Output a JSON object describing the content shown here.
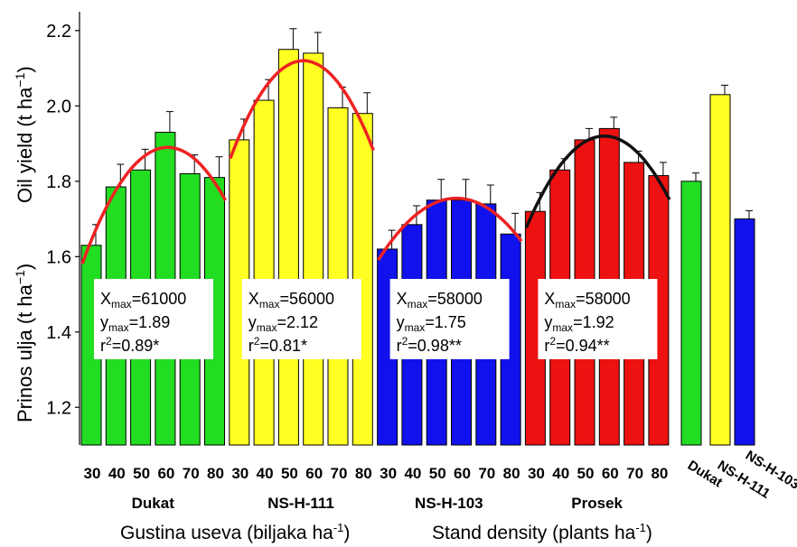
{
  "chart_data": {
    "type": "bar",
    "ylabel_1": "Prinos ulja (t ha",
    "ylabel_1_sup": "−1",
    "ylabel_1_close": ")",
    "ylabel_2": "Oil yield (t ha",
    "ylabel_2_sup": "−1",
    "ylabel_2_close": ")",
    "xlabel_1": "Gustina useva (biljaka ha",
    "xlabel_1_sup": "-1",
    "xlabel_1_close": ")",
    "xlabel_2": "Stand density (plants ha",
    "xlabel_2_sup": "-1",
    "xlabel_2_close": ")",
    "ylim": [
      1.1,
      2.25
    ],
    "yticks": [
      "1.2",
      "1.4",
      "1.6",
      "1.8",
      "2.0",
      "2.2"
    ],
    "groups": [
      {
        "name": "Dukat",
        "color": "#22dd22",
        "categories": [
          "30",
          "40",
          "50",
          "60",
          "70",
          "80"
        ],
        "values": [
          1.63,
          1.785,
          1.83,
          1.93,
          1.82,
          1.81
        ],
        "errors": [
          0.055,
          0.06,
          0.055,
          0.055,
          0.05,
          0.055
        ],
        "fit": {
          "a": 1.89,
          "k": 61000,
          "color": "#ee2222"
        },
        "stats": {
          "x": "61000",
          "y": "1.89",
          "r2": "0.89*"
        }
      },
      {
        "name": "NS-H-111",
        "color": "#ffff22",
        "categories": [
          "30",
          "40",
          "50",
          "60",
          "70",
          "80"
        ],
        "values": [
          1.91,
          2.015,
          2.15,
          2.14,
          1.995,
          1.98
        ],
        "errors": [
          0.055,
          0.055,
          0.055,
          0.055,
          0.055,
          0.055
        ],
        "fit": {
          "a": 2.12,
          "k": 56000,
          "color": "#ee2222"
        },
        "stats": {
          "x": "56000",
          "y": "2.12",
          "r2": "0.81*"
        }
      },
      {
        "name": "NS-H-103",
        "color": "#1111ee",
        "categories": [
          "30",
          "40",
          "50",
          "60",
          "70",
          "80"
        ],
        "values": [
          1.62,
          1.685,
          1.75,
          1.75,
          1.74,
          1.66
        ],
        "errors": [
          0.05,
          0.05,
          0.055,
          0.055,
          0.05,
          0.055
        ],
        "fit": {
          "a": 1.755,
          "k": 58000,
          "color": "#ee2222"
        },
        "stats": {
          "x": "58000",
          "y": "1.75",
          "r2": "0.98**"
        }
      },
      {
        "name": "Prosek",
        "color": "#ee1111",
        "categories": [
          "30",
          "40",
          "50",
          "60",
          "70",
          "80"
        ],
        "values": [
          1.72,
          1.83,
          1.91,
          1.94,
          1.85,
          1.815
        ],
        "errors": [
          0.05,
          0.03,
          0.03,
          0.03,
          0.03,
          0.035
        ],
        "fit": {
          "a": 1.92,
          "k": 58000,
          "color": "#111111"
        },
        "stats": {
          "x": "58000",
          "y": "1.92",
          "r2": "0.94**"
        }
      }
    ],
    "means": {
      "categories": [
        "Dukat",
        "NS-H-111",
        "NS-H-103"
      ],
      "values": [
        1.8,
        2.03,
        1.7
      ],
      "errors": [
        0.022,
        0.025,
        0.022
      ],
      "colors": [
        "#22dd22",
        "#ffff22",
        "#1111ee"
      ]
    }
  }
}
